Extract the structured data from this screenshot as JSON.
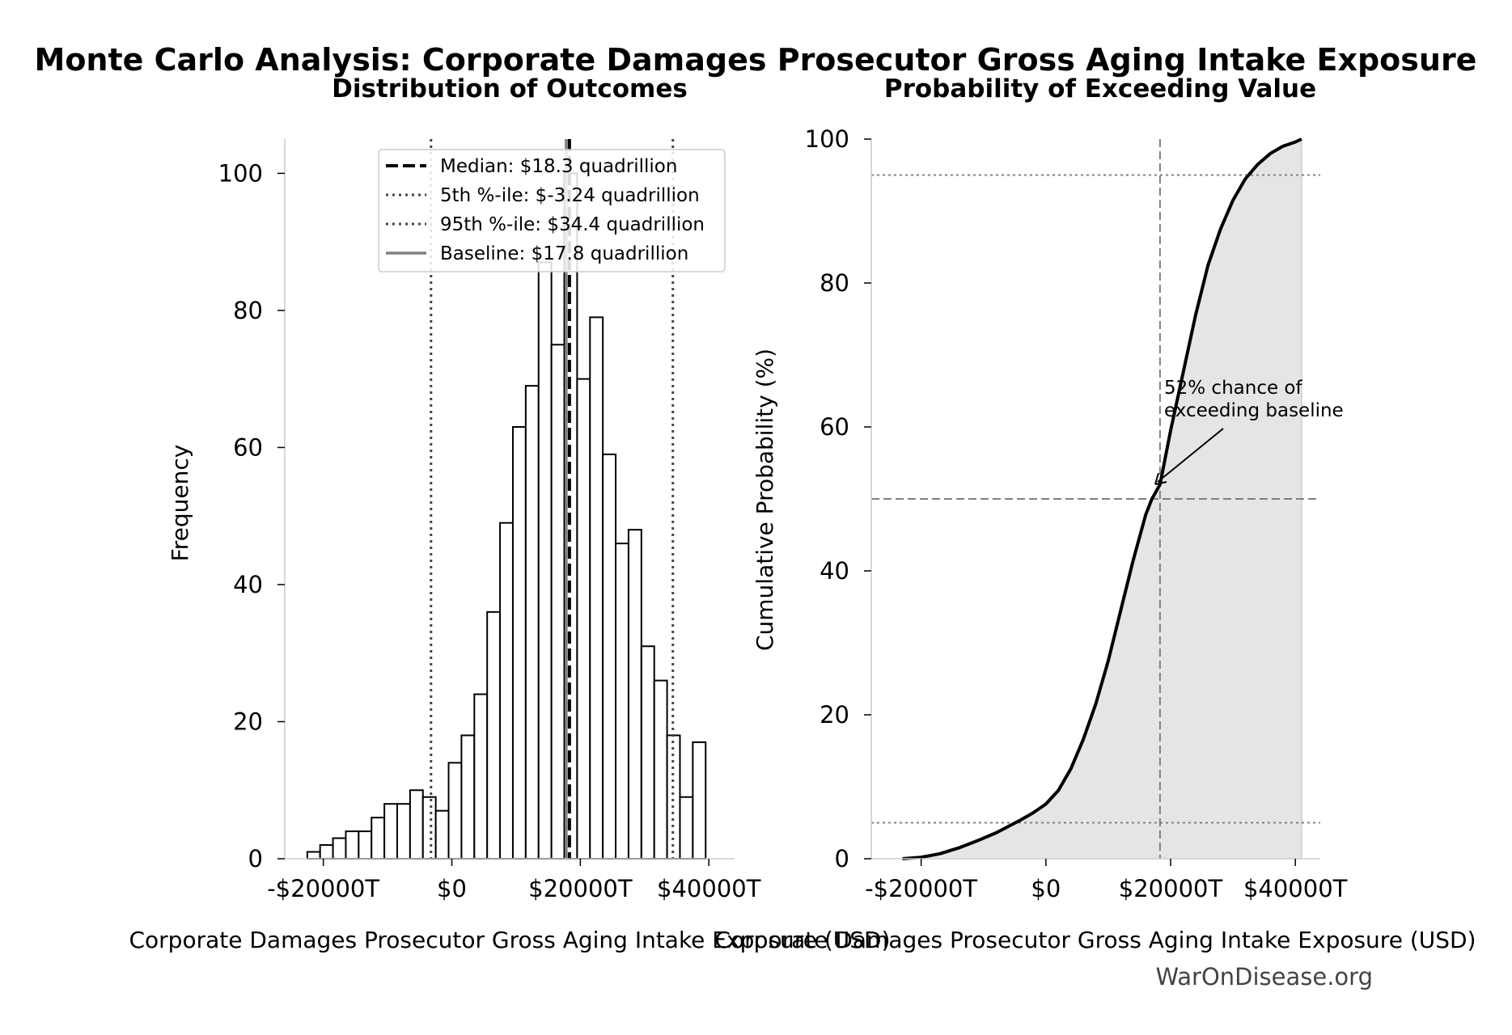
{
  "figure": {
    "title": "Monte Carlo Analysis: Corporate Damages Prosecutor Gross Aging Intake Exposure",
    "watermark": "WarOnDisease.org"
  },
  "chart_data": [
    {
      "type": "bar",
      "title": "Distribution of Outcomes",
      "xlabel": "Corporate Damages Prosecutor Gross Aging Intake Exposure (USD)",
      "ylabel": "Frequency",
      "xlim": [
        -26000,
        44000
      ],
      "ylim": [
        0,
        105
      ],
      "xticks": [
        -20000,
        0,
        20000,
        40000
      ],
      "xtick_labels": [
        "-$20000T",
        "$0",
        "$20000T",
        "$40000T"
      ],
      "yticks": [
        0,
        20,
        40,
        60,
        80,
        100
      ],
      "ytick_labels": [
        "0",
        "20",
        "40",
        "60",
        "80",
        "100"
      ],
      "bin_start": -22500,
      "bin_width": 2000,
      "values": [
        1,
        2,
        3,
        4,
        4,
        6,
        8,
        8,
        10,
        9,
        7,
        14,
        18,
        24,
        36,
        49,
        63,
        69,
        87,
        75,
        100,
        70,
        79,
        59,
        46,
        48,
        31,
        26,
        18,
        9,
        17
      ],
      "median": 18300,
      "p5": -3240,
      "p95": 34400,
      "baseline": 17800,
      "legend": [
        "Median: $18.3 quadrillion",
        "5th %-ile: $-3.24 quadrillion",
        "95th %-ile: $34.4 quadrillion",
        "Baseline: $17.8 quadrillion"
      ],
      "legend_position": "top-center",
      "grid": false
    },
    {
      "type": "area",
      "title": "Probability of Exceeding Value",
      "xlabel": "Corporate Damages Prosecutor Gross Aging Intake Exposure (USD)",
      "ylabel": "Cumulative Probability (%)",
      "xlim": [
        -28000,
        44000
      ],
      "ylim": [
        0,
        100
      ],
      "xticks": [
        -20000,
        0,
        20000,
        40000
      ],
      "xtick_labels": [
        "-$20000T",
        "$0",
        "$20000T",
        "$40000T"
      ],
      "yticks": [
        0,
        20,
        40,
        60,
        80,
        100
      ],
      "ytick_labels": [
        "0",
        "20",
        "40",
        "60",
        "80",
        "100"
      ],
      "x": [
        -23000,
        -20000,
        -17000,
        -14000,
        -11000,
        -8000,
        -6000,
        -4000,
        -2000,
        0,
        2000,
        4000,
        6000,
        8000,
        10000,
        12000,
        14000,
        16000,
        17000,
        18300,
        20000,
        22000,
        24000,
        26000,
        28000,
        30000,
        32000,
        34000,
        36000,
        38000,
        40000,
        41000
      ],
      "y": [
        0,
        0.2,
        0.7,
        1.5,
        2.5,
        3.6,
        4.5,
        5.4,
        6.4,
        7.6,
        9.5,
        12.5,
        16.6,
        21.5,
        27.5,
        34.5,
        41.5,
        47.8,
        50.0,
        52.0,
        59.5,
        67.5,
        75.5,
        82.5,
        87.5,
        91.5,
        94.5,
        96.5,
        98.0,
        99.0,
        99.6,
        100
      ],
      "median": 18300,
      "reference_lines_y": [
        5,
        50,
        95
      ],
      "annotation": [
        "52% chance of",
        "exceeding baseline"
      ],
      "grid": false
    }
  ]
}
